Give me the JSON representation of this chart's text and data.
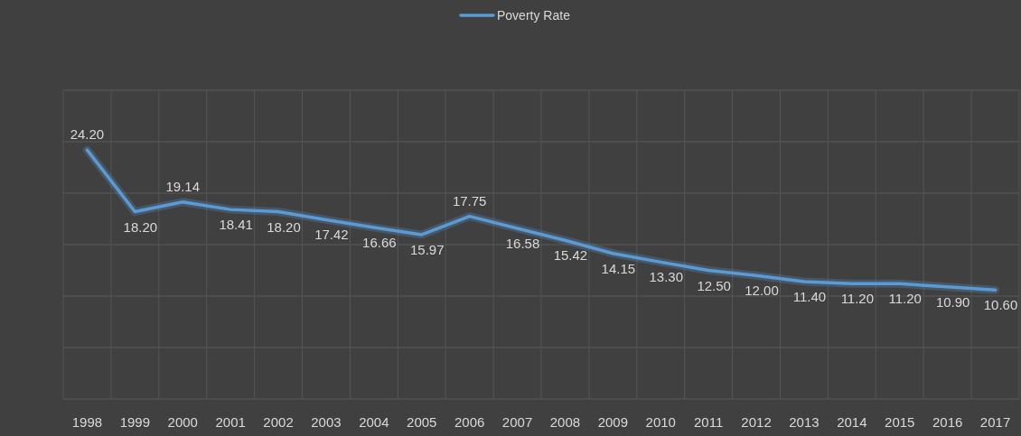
{
  "chart_data": {
    "type": "line",
    "categories": [
      "1998",
      "1999",
      "2000",
      "2001",
      "2002",
      "2003",
      "2004",
      "2005",
      "2006",
      "2007",
      "2008",
      "2009",
      "2010",
      "2011",
      "2012",
      "2013",
      "2014",
      "2015",
      "2016",
      "2017"
    ],
    "series": [
      {
        "name": "Poverty Rate",
        "color": "#5b9bd5",
        "values": [
          24.2,
          18.2,
          19.14,
          18.41,
          18.2,
          17.42,
          16.66,
          15.97,
          17.75,
          16.58,
          15.42,
          14.15,
          13.3,
          12.5,
          12.0,
          11.4,
          11.2,
          11.2,
          10.9,
          10.6
        ],
        "value_labels": [
          "24.20",
          "18.20",
          "19.14",
          "18.41",
          "18.20",
          "17.42",
          "16.66",
          "15.97",
          "17.75",
          "16.58",
          "15.42",
          "14.15",
          "13.30",
          "12.50",
          "12.00",
          "11.40",
          "11.20",
          "11.20",
          "10.90",
          "10.60"
        ]
      }
    ],
    "ylim": [
      0,
      30
    ],
    "yticks": [
      {
        "value": 0,
        "label": null
      },
      {
        "value": 5,
        "label": null
      },
      {
        "value": 10,
        "label": null
      },
      {
        "value": 15,
        "label": null
      },
      {
        "value": 20,
        "label": null
      },
      {
        "value": 25,
        "label": null
      },
      {
        "value": 30,
        "label": null
      }
    ],
    "tick_labels": "x",
    "grid": true,
    "legend": "top",
    "marker": "none",
    "line_style": "solid"
  }
}
